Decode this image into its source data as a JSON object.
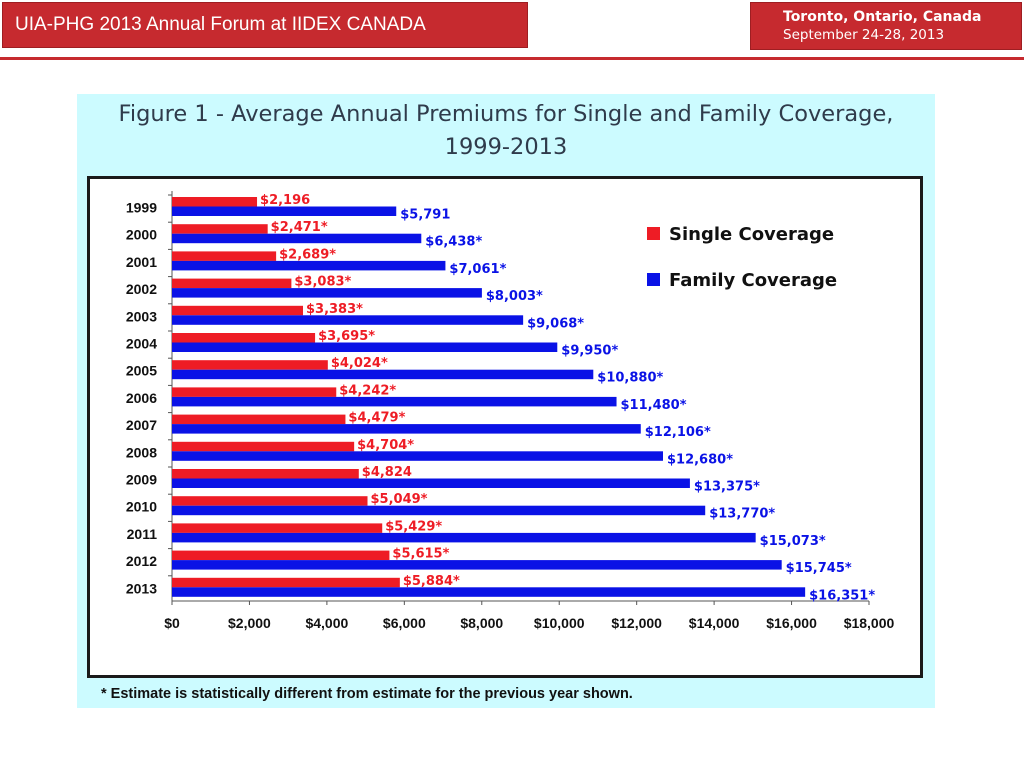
{
  "header": {
    "title": "UIA-PHG 2013 Annual Forum at IIDEX CANADA",
    "location": "Toronto, Ontario, Canada",
    "dates": "September 24-28, 2013"
  },
  "colors": {
    "brand_red": "#c62a2f",
    "figure_bg": "#ccfbff",
    "single": "#ee1c25",
    "family": "#0a12e6"
  },
  "footnote": "* Estimate is statistically different from estimate for the previous year shown.",
  "chart_data": {
    "type": "bar",
    "orientation": "horizontal",
    "title": "Figure 1 - Average Annual Premiums for Single and Family Coverage, 1999-2013",
    "title_lines": [
      "Figure 1 - Average Annual Premiums for Single and Family Coverage,",
      "1999-2013"
    ],
    "categories": [
      "1999",
      "2000",
      "2001",
      "2002",
      "2003",
      "2004",
      "2005",
      "2006",
      "2007",
      "2008",
      "2009",
      "2010",
      "2011",
      "2012",
      "2013"
    ],
    "series": [
      {
        "name": "Single Coverage",
        "color": "#ee1c25",
        "values": [
          2196,
          2471,
          2689,
          3083,
          3383,
          3695,
          4024,
          4242,
          4479,
          4704,
          4824,
          5049,
          5429,
          5615,
          5884
        ],
        "labels": [
          "$2,196",
          "$2,471*",
          "$2,689*",
          "$3,083*",
          "$3,383*",
          "$3,695*",
          "$4,024*",
          "$4,242*",
          "$4,479*",
          "$4,704*",
          "$4,824",
          "$5,049*",
          "$5,429*",
          "$5,615*",
          "$5,884*"
        ]
      },
      {
        "name": "Family Coverage",
        "color": "#0a12e6",
        "values": [
          5791,
          6438,
          7061,
          8003,
          9068,
          9950,
          10880,
          11480,
          12106,
          12680,
          13375,
          13770,
          15073,
          15745,
          16351
        ],
        "labels": [
          "$5,791",
          "$6,438*",
          "$7,061*",
          "$8,003*",
          "$9,068*",
          "$9,950*",
          "$10,880*",
          "$11,480*",
          "$12,106*",
          "$12,680*",
          "$13,375*",
          "$13,770*",
          "$15,073*",
          "$15,745*",
          "$16,351*"
        ]
      }
    ],
    "xlim": [
      0,
      18000
    ],
    "xticks": [
      0,
      2000,
      4000,
      6000,
      8000,
      10000,
      12000,
      14000,
      16000,
      18000
    ],
    "xtick_labels": [
      "$0",
      "$2,000",
      "$4,000",
      "$6,000",
      "$8,000",
      "$10,000",
      "$12,000",
      "$14,000",
      "$16,000",
      "$18,000"
    ],
    "legend_position": "top-right",
    "grid": false
  }
}
